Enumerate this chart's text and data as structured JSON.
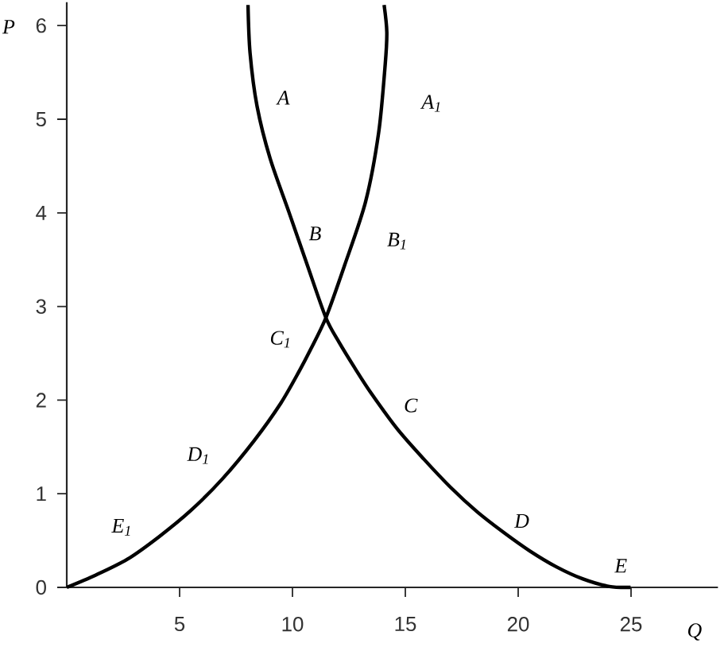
{
  "chart_data": {
    "type": "line",
    "xlabel": "Q",
    "ylabel": "P",
    "xlim": [
      0,
      28.85
    ],
    "ylim": [
      0,
      6.25
    ],
    "xticks": [
      5,
      10,
      15,
      20,
      25
    ],
    "yticks": [
      0,
      1,
      2,
      3,
      4,
      5,
      6
    ],
    "series": [
      {
        "color": "#000000",
        "x": [
          8.03,
          8.12,
          8.43,
          9.01,
          9.84,
          10.66,
          11.48,
          12.06,
          12.77,
          13.47,
          14.65,
          15.82,
          17.0,
          18.17,
          19.34,
          20.51,
          21.69,
          22.87,
          24.04,
          24.98
        ],
        "values": [
          6.22,
          5.71,
          5.14,
          4.58,
          4.01,
          3.44,
          2.88,
          2.62,
          2.34,
          2.08,
          1.69,
          1.37,
          1.07,
          0.81,
          0.59,
          0.39,
          0.22,
          0.09,
          0.01,
          0
        ]
      },
      {
        "color": "#000000",
        "x": [
          0,
          1.27,
          2.68,
          4.08,
          5.49,
          6.9,
          8.31,
          9.49,
          10.3,
          10.8,
          11.48,
          12.31,
          13.24,
          13.82,
          14.11,
          14.18,
          14.06
        ],
        "values": [
          0,
          0.13,
          0.3,
          0.54,
          0.82,
          1.16,
          1.57,
          1.97,
          2.31,
          2.54,
          2.88,
          3.44,
          4.12,
          4.86,
          5.59,
          5.93,
          6.22
        ]
      }
    ],
    "annotations": [
      {
        "text": "A",
        "x": 8.38,
        "y": 5.23
      },
      {
        "text": "A$_{1}$",
        "x": 13.94,
        "y": 5.17
      },
      {
        "text": "B",
        "x": 10.17,
        "y": 3.78
      },
      {
        "text": "B$_{1}$",
        "x": 12.67,
        "y": 3.7
      },
      {
        "text": "C$_{1}$",
        "x": 11.02,
        "y": 2.65
      },
      {
        "text": "C",
        "x": 14.35,
        "y": 1.79
      },
      {
        "text": "D$_{1}$",
        "x": 6.99,
        "y": 1.18
      },
      {
        "text": "D",
        "x": 20.16,
        "y": 0.45
      },
      {
        "text": "E$_{1}$",
        "x": 3.17,
        "y": 0.4
      },
      {
        "text": "E",
        "x": 24.55,
        "y": 0.01
      }
    ]
  }
}
